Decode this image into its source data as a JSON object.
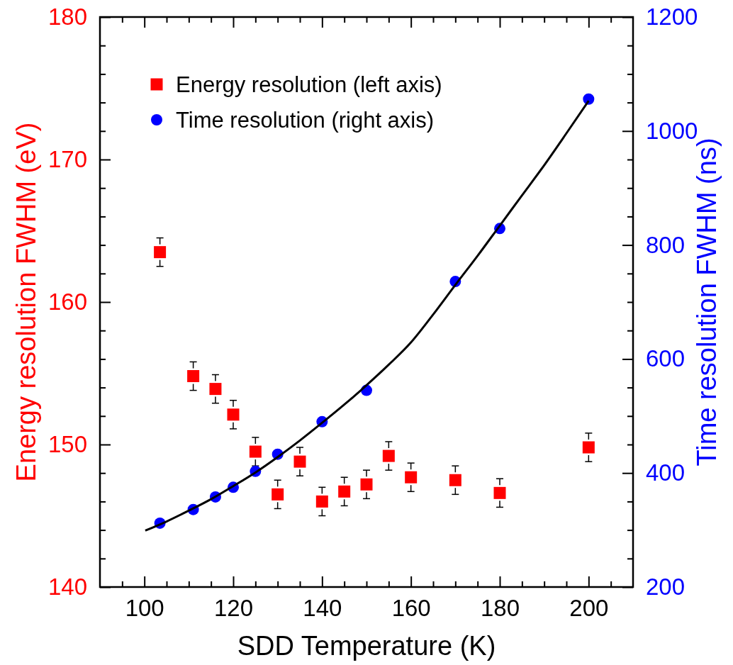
{
  "chart_data": {
    "type": "scatter",
    "xlabel": "SDD Temperature (K)",
    "ylabel": "Energy resolution FWHM (eV)",
    "y2label": "Time resolution FWHM (ns)",
    "xlim": [
      90,
      210
    ],
    "xticks": [
      {
        "value": 95,
        "label": null
      },
      100,
      {
        "value": 105,
        "label": null
      },
      {
        "value": 110,
        "label": null
      },
      {
        "value": 115,
        "label": null
      },
      120,
      {
        "value": 125,
        "label": null
      },
      {
        "value": 130,
        "label": null
      },
      {
        "value": 135,
        "label": null
      },
      140,
      {
        "value": 145,
        "label": null
      },
      {
        "value": 150,
        "label": null
      },
      {
        "value": 155,
        "label": null
      },
      160,
      {
        "value": 165,
        "label": null
      },
      {
        "value": 170,
        "label": null
      },
      {
        "value": 175,
        "label": null
      },
      180,
      {
        "value": 185,
        "label": null
      },
      {
        "value": 190,
        "label": null
      },
      {
        "value": 195,
        "label": null
      },
      200,
      {
        "value": 205,
        "label": null
      }
    ],
    "ylim": [
      140,
      180
    ],
    "yticks": [
      140,
      {
        "value": 142,
        "label": null
      },
      {
        "value": 144,
        "label": null
      },
      {
        "value": 146,
        "label": null
      },
      {
        "value": 148,
        "label": null
      },
      150,
      {
        "value": 152,
        "label": null
      },
      {
        "value": 154,
        "label": null
      },
      {
        "value": 156,
        "label": null
      },
      {
        "value": 158,
        "label": null
      },
      160,
      {
        "value": 162,
        "label": null
      },
      {
        "value": 164,
        "label": null
      },
      {
        "value": 166,
        "label": null
      },
      {
        "value": 168,
        "label": null
      },
      170,
      {
        "value": 172,
        "label": null
      },
      {
        "value": 174,
        "label": null
      },
      {
        "value": 176,
        "label": null
      },
      {
        "value": 178,
        "label": null
      },
      180
    ],
    "y2lim": [
      200,
      1200
    ],
    "y2ticks": [
      200,
      {
        "value": 250,
        "label": null
      },
      {
        "value": 300,
        "label": null
      },
      {
        "value": 350,
        "label": null
      },
      400,
      {
        "value": 450,
        "label": null
      },
      {
        "value": 500,
        "label": null
      },
      {
        "value": 550,
        "label": null
      },
      600,
      {
        "value": 650,
        "label": null
      },
      {
        "value": 700,
        "label": null
      },
      {
        "value": 750,
        "label": null
      },
      800,
      {
        "value": 850,
        "label": null
      },
      {
        "value": 900,
        "label": null
      },
      {
        "value": 950,
        "label": null
      },
      1000,
      {
        "value": 1050,
        "label": null
      },
      {
        "value": 1100,
        "label": null
      },
      {
        "value": 1150,
        "label": null
      },
      1200
    ],
    "grid": false,
    "legend": "top left",
    "series": [
      {
        "name": "Energy resolution (left axis)",
        "type": "scatter",
        "marker": "square",
        "color": "#ff0000",
        "axis": "y",
        "x": [
          103.5,
          111,
          116,
          120,
          125,
          130,
          135,
          140,
          145,
          150,
          155,
          160,
          170,
          180,
          200
        ],
        "values": [
          163.5,
          154.8,
          153.9,
          152.1,
          149.5,
          146.5,
          148.8,
          146.0,
          146.7,
          147.2,
          149.2,
          147.7,
          147.5,
          146.6,
          149.8
        ],
        "errors": [
          1.0,
          1.0,
          1.0,
          1.0,
          1.0,
          1.0,
          1.0,
          1.0,
          1.0,
          1.0,
          1.0,
          1.0,
          1.0,
          1.0,
          1.0
        ]
      },
      {
        "name": "Time resolution (right axis)",
        "type": "scatter",
        "marker": "circle",
        "color": "#0000ff",
        "axis": "y2",
        "x": [
          103.5,
          111,
          116,
          120,
          125,
          130,
          140,
          150,
          170,
          180,
          200
        ],
        "values": [
          312,
          336,
          358,
          375,
          403,
          433,
          490,
          545,
          736,
          829,
          1056
        ]
      },
      {
        "type": "line",
        "marker": "none",
        "line_style": "solid",
        "color": "#000000",
        "axis": "y2",
        "x": [
          100.2,
          105,
          110,
          115,
          120,
          125,
          130,
          135,
          140,
          145,
          150,
          155,
          160,
          165,
          170,
          175,
          180,
          185,
          190,
          195,
          200
        ],
        "values": [
          299,
          315,
          334,
          354,
          377,
          401,
          428,
          457,
          488,
          520,
          554,
          590,
          629,
          678,
          730,
          781,
          834,
          887,
          940,
          996,
          1053
        ]
      }
    ]
  }
}
